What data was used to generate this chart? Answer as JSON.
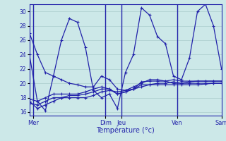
{
  "title": "Température (°c)",
  "background_color": "#cce8e8",
  "line_color": "#2222aa",
  "grid_color": "#aacccc",
  "ylim": [
    15.5,
    31.0
  ],
  "yticks": [
    16,
    18,
    20,
    22,
    24,
    26,
    28,
    30
  ],
  "xlim": [
    0,
    24
  ],
  "x_ticks_pos": [
    0.5,
    9.5,
    11.5,
    18.5,
    24.0
  ],
  "x_ticks_labels": [
    "Mer",
    "Dim",
    "Jeu",
    "Ven",
    "Sam"
  ],
  "vlines": [
    0.5,
    9.5,
    11.5,
    18.5
  ],
  "series": [
    [
      27.0,
      24.0,
      21.5,
      21.0,
      20.5,
      20.0,
      19.8,
      19.5,
      19.5,
      21.0,
      20.5,
      19.2,
      19.0,
      19.5,
      20.0,
      20.5,
      20.5,
      20.3,
      20.0,
      20.0,
      20.2,
      20.3,
      20.3,
      20.3,
      20.3
    ],
    [
      17.5,
      16.5,
      17.0,
      17.5,
      18.0,
      18.0,
      18.0,
      18.0,
      18.3,
      18.8,
      19.0,
      18.8,
      19.0,
      19.2,
      19.5,
      19.8,
      19.8,
      19.8,
      19.8,
      19.8,
      19.8,
      19.8,
      19.9,
      20.0,
      20.0
    ],
    [
      17.2,
      17.0,
      17.5,
      18.0,
      18.0,
      18.3,
      18.3,
      18.5,
      18.8,
      19.2,
      19.2,
      18.5,
      18.8,
      19.2,
      19.8,
      19.8,
      20.0,
      20.0,
      20.2,
      20.0,
      20.0,
      20.0,
      20.0,
      20.0,
      20.0
    ],
    [
      17.8,
      17.5,
      18.0,
      18.5,
      18.5,
      18.5,
      18.5,
      18.8,
      19.2,
      19.5,
      19.2,
      18.5,
      18.8,
      19.2,
      20.2,
      20.3,
      20.3,
      20.3,
      20.5,
      20.3,
      20.3,
      20.3,
      20.3,
      20.3,
      20.3
    ],
    [
      24.0,
      17.5,
      16.2,
      21.0,
      26.0,
      29.0,
      28.5,
      25.0,
      19.0,
      18.0,
      18.5,
      16.5,
      21.5,
      24.0,
      30.5,
      29.5,
      26.5,
      25.5,
      21.0,
      20.5,
      23.5,
      30.0,
      31.0,
      28.0,
      22.0
    ]
  ]
}
